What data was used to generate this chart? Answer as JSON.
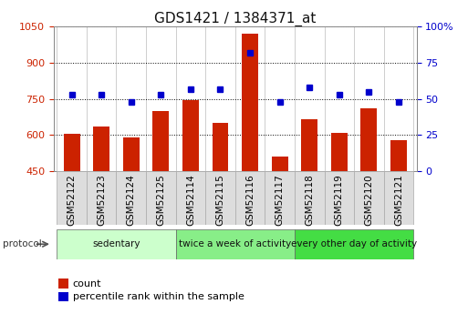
{
  "title": "GDS1421 / 1384371_at",
  "samples": [
    "GSM52122",
    "GSM52123",
    "GSM52124",
    "GSM52125",
    "GSM52114",
    "GSM52115",
    "GSM52116",
    "GSM52117",
    "GSM52118",
    "GSM52119",
    "GSM52120",
    "GSM52121"
  ],
  "counts": [
    605,
    635,
    590,
    700,
    745,
    650,
    1020,
    510,
    665,
    610,
    710,
    580
  ],
  "percentiles": [
    53,
    53,
    48,
    53,
    57,
    57,
    82,
    48,
    58,
    53,
    55,
    48
  ],
  "ylim_left": [
    450,
    1050
  ],
  "ylim_right": [
    0,
    100
  ],
  "yticks_left": [
    450,
    600,
    750,
    900,
    1050
  ],
  "yticks_right": [
    0,
    25,
    50,
    75,
    100
  ],
  "bar_color": "#cc2200",
  "dot_color": "#0000cc",
  "groups": [
    {
      "label": "sedentary",
      "start": 0,
      "end": 4,
      "color": "#ccffcc"
    },
    {
      "label": "twice a week of activity",
      "start": 4,
      "end": 8,
      "color": "#88ee88"
    },
    {
      "label": "every other day of activity",
      "start": 8,
      "end": 12,
      "color": "#44dd44"
    }
  ],
  "protocol_label": "protocol",
  "legend_count_label": "count",
  "legend_pct_label": "percentile rank within the sample",
  "title_fontsize": 11,
  "tick_fontsize": 8,
  "label_fontsize": 7.5,
  "group_fontsize": 7.5,
  "legend_fontsize": 8
}
